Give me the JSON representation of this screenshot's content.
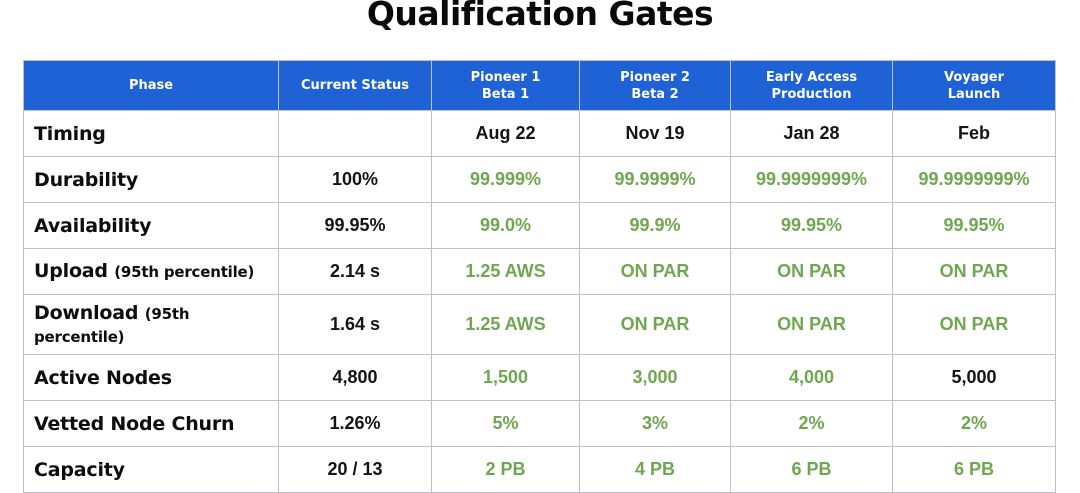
{
  "title": "Qualification Gates",
  "colors": {
    "header_bg": "#1f62d6",
    "target_green": "#6fa750",
    "text_dark": "#141414"
  },
  "table": {
    "headers": [
      {
        "lines": [
          "Phase"
        ]
      },
      {
        "lines": [
          "Current Status"
        ]
      },
      {
        "lines": [
          "Pioneer 1",
          "Beta 1"
        ]
      },
      {
        "lines": [
          "Pioneer 2",
          "Beta 2"
        ]
      },
      {
        "lines": [
          "Early Access",
          "Production"
        ]
      },
      {
        "lines": [
          "Voyager",
          "Launch"
        ]
      }
    ],
    "rows": [
      {
        "label": "Timing",
        "sub": "",
        "current": "",
        "values": [
          "Aug 22",
          "Nov 19",
          "Jan 28",
          "Feb"
        ],
        "green": [
          false,
          false,
          false,
          false
        ]
      },
      {
        "label": "Durability",
        "sub": "",
        "current": "100%",
        "values": [
          "99.999%",
          "99.9999%",
          "99.9999999%",
          "99.9999999%"
        ],
        "green": [
          true,
          true,
          true,
          true
        ]
      },
      {
        "label": "Availability",
        "sub": "",
        "current": "99.95%",
        "values": [
          "99.0%",
          "99.9%",
          "99.95%",
          "99.95%"
        ],
        "green": [
          true,
          true,
          true,
          true
        ]
      },
      {
        "label": "Upload",
        "sub": "(95th percentile)",
        "current": "2.14 s",
        "values": [
          "1.25 AWS",
          "ON PAR",
          "ON PAR",
          "ON PAR"
        ],
        "green": [
          true,
          true,
          true,
          true
        ]
      },
      {
        "label": "Download",
        "sub": "(95th percentile)",
        "current": "1.64 s",
        "values": [
          "1.25 AWS",
          "ON PAR",
          "ON PAR",
          "ON PAR"
        ],
        "green": [
          true,
          true,
          true,
          true
        ]
      },
      {
        "label": "Active Nodes",
        "sub": "",
        "current": "4,800",
        "values": [
          "1,500",
          "3,000",
          "4,000",
          "5,000"
        ],
        "green": [
          true,
          true,
          true,
          false
        ]
      },
      {
        "label": "Vetted Node Churn",
        "sub": "",
        "current": "1.26%",
        "values": [
          "5%",
          "3%",
          "2%",
          "2%"
        ],
        "green": [
          true,
          true,
          true,
          true
        ]
      },
      {
        "label": "Capacity",
        "sub": "",
        "current": "20 / 13",
        "values": [
          "2 PB",
          "4 PB",
          "6 PB",
          "6 PB"
        ],
        "green": [
          true,
          true,
          true,
          true
        ]
      }
    ]
  }
}
